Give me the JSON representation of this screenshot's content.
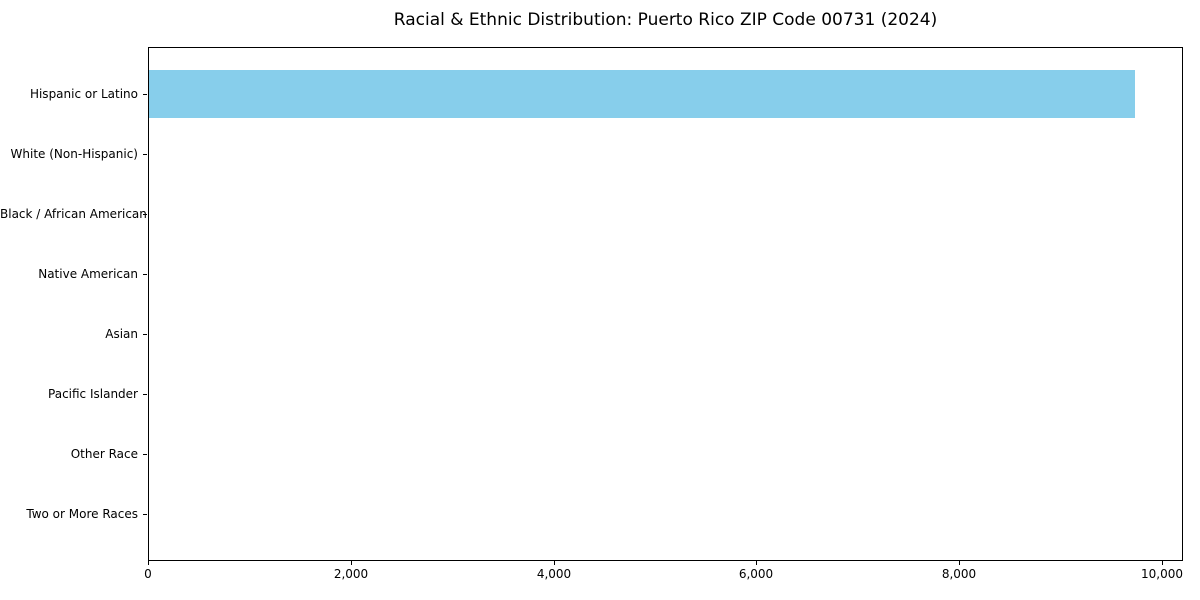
{
  "chart_data": {
    "type": "bar",
    "orientation": "horizontal",
    "title": "Racial & Ethnic Distribution: Puerto Rico ZIP Code 00731 (2024)",
    "categories": [
      "Hispanic or Latino",
      "White (Non-Hispanic)",
      "Black / African American",
      "Native American",
      "Asian",
      "Pacific Islander",
      "Other Race",
      "Two or More Races"
    ],
    "values": [
      9720,
      0,
      0,
      0,
      0,
      0,
      0,
      0
    ],
    "xlabel": "",
    "ylabel": "",
    "xlim": [
      0,
      10206
    ],
    "xticks": [
      0,
      2000,
      4000,
      6000,
      8000,
      10000
    ],
    "xtick_labels": [
      "0",
      "2,000",
      "4,000",
      "6,000",
      "8,000",
      "10,000"
    ],
    "bar_color": "#87CEEB",
    "text_color": "#000000",
    "background_color": "#FFFFFF",
    "grid": false,
    "legend": null,
    "bar_height_fraction": 0.8
  }
}
